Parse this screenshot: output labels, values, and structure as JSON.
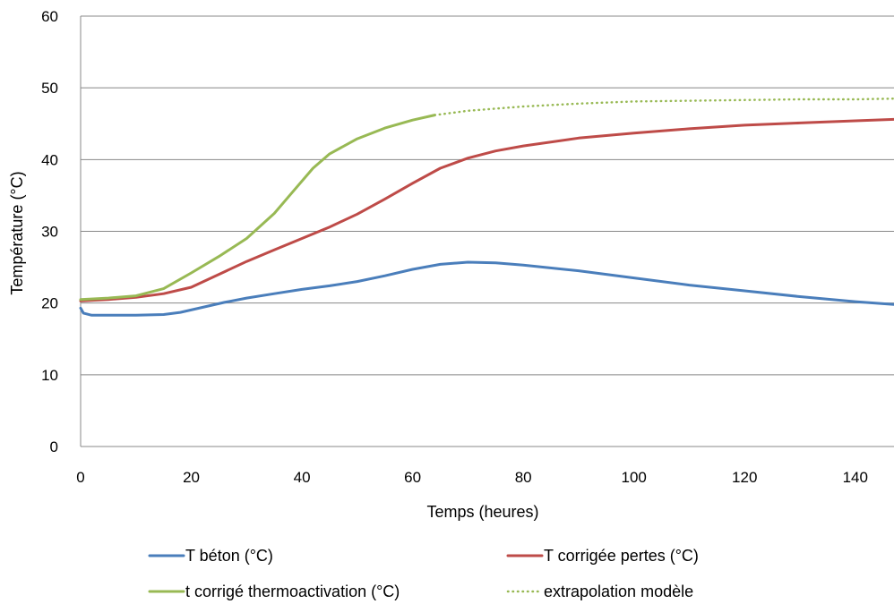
{
  "chart_data": {
    "type": "line",
    "title": "",
    "xlabel": "Temps (heures)",
    "ylabel": "Température (°C)",
    "xlim": [
      0,
      147
    ],
    "ylim": [
      0,
      60
    ],
    "xticks": [
      0,
      20,
      40,
      60,
      80,
      100,
      120,
      140
    ],
    "yticks": [
      0,
      10,
      20,
      30,
      40,
      50,
      60
    ],
    "grid": "horizontal",
    "legend_position": "bottom",
    "series": [
      {
        "name": "T béton (°C)",
        "color": "#4a7ebb",
        "style": "solid",
        "x": [
          0,
          0.5,
          2,
          5,
          10,
          15,
          18,
          22,
          26,
          30,
          35,
          40,
          45,
          50,
          55,
          60,
          65,
          70,
          75,
          80,
          90,
          100,
          110,
          120,
          130,
          140,
          147
        ],
        "y": [
          19.3,
          18.6,
          18.3,
          18.3,
          18.3,
          18.4,
          18.7,
          19.4,
          20.1,
          20.7,
          21.3,
          21.9,
          22.4,
          23.0,
          23.8,
          24.7,
          25.4,
          25.7,
          25.6,
          25.3,
          24.5,
          23.5,
          22.5,
          21.7,
          20.9,
          20.2,
          19.8
        ]
      },
      {
        "name": "T corrigée pertes (°C)",
        "color": "#be4b48",
        "style": "solid",
        "x": [
          0,
          5,
          10,
          15,
          20,
          25,
          30,
          35,
          40,
          45,
          50,
          55,
          60,
          65,
          70,
          75,
          80,
          90,
          100,
          110,
          120,
          130,
          140,
          147
        ],
        "y": [
          20.3,
          20.5,
          20.8,
          21.3,
          22.2,
          24.0,
          25.8,
          27.4,
          29.0,
          30.6,
          32.4,
          34.5,
          36.7,
          38.8,
          40.2,
          41.2,
          41.9,
          43.0,
          43.7,
          44.3,
          44.8,
          45.1,
          45.4,
          45.6
        ]
      },
      {
        "name": "t corrigé thermoactivation (°C)",
        "color": "#98b954",
        "style": "solid",
        "x": [
          0,
          5,
          10,
          15,
          20,
          25,
          30,
          35,
          38,
          42,
          45,
          50,
          55,
          60,
          64
        ],
        "y": [
          20.5,
          20.7,
          21.0,
          22.0,
          24.2,
          26.5,
          29.0,
          32.5,
          35.2,
          38.8,
          40.8,
          42.9,
          44.4,
          45.5,
          46.2
        ]
      },
      {
        "name": "extrapolation modèle",
        "color": "#98b954",
        "style": "dotted",
        "x": [
          64,
          70,
          80,
          90,
          100,
          110,
          120,
          130,
          140,
          147
        ],
        "y": [
          46.2,
          46.8,
          47.4,
          47.8,
          48.1,
          48.2,
          48.3,
          48.4,
          48.4,
          48.5
        ]
      }
    ]
  }
}
